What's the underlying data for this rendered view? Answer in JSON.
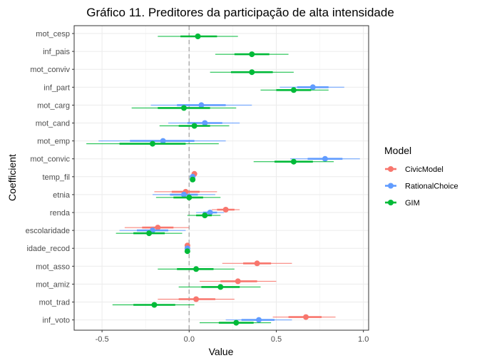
{
  "chart_data": {
    "type": "coefficient-plot",
    "title": "Gráfico 11. Preditores da participação de alta intensidade",
    "xlabel": "Value",
    "ylabel": "Coefficient",
    "xlim": [
      -0.66,
      1.03
    ],
    "xticks": [
      -0.5,
      0.0,
      0.5,
      1.0
    ],
    "xtick_labels": [
      "-0.5",
      "0.0",
      "0.5",
      "1.0"
    ],
    "reference_line": 0,
    "grid": true,
    "legend": {
      "title": "Model",
      "placement": "right"
    },
    "categories": [
      "mot_cesp",
      "inf_pais",
      "mot_conviv",
      "inf_part",
      "mot_carg",
      "mot_cand",
      "mot_emp",
      "mot_convic",
      "temp_fil",
      "etnia",
      "renda",
      "escolaridade",
      "idade_recod",
      "mot_asso",
      "mot_amiz",
      "mot_trad",
      "inf_voto"
    ],
    "series": [
      {
        "name": "CivicModel",
        "color": "#F8766D",
        "offset": -1,
        "points": [
          {
            "category": "temp_fil",
            "estimate": 0.03,
            "inner": [
              0.02,
              0.04
            ],
            "outer": [
              0.015,
              0.045
            ]
          },
          {
            "category": "etnia",
            "estimate": -0.02,
            "inner": [
              -0.1,
              0.06
            ],
            "outer": [
              -0.2,
              0.16
            ]
          },
          {
            "category": "renda",
            "estimate": 0.21,
            "inner": [
              0.16,
              0.26
            ],
            "outer": [
              0.13,
              0.29
            ]
          },
          {
            "category": "escolaridade",
            "estimate": -0.18,
            "inner": [
              -0.27,
              -0.09
            ],
            "outer": [
              -0.37,
              0.0
            ]
          },
          {
            "category": "idade_recod",
            "estimate": -0.01,
            "inner": [
              -0.015,
              -0.005
            ],
            "outer": [
              -0.02,
              0.0
            ]
          },
          {
            "category": "mot_asso",
            "estimate": 0.39,
            "inner": [
              0.31,
              0.47
            ],
            "outer": [
              0.19,
              0.59
            ]
          },
          {
            "category": "mot_amiz",
            "estimate": 0.28,
            "inner": [
              0.18,
              0.39
            ],
            "outer": [
              0.06,
              0.5
            ]
          },
          {
            "category": "mot_trad",
            "estimate": 0.04,
            "inner": [
              -0.06,
              0.15
            ],
            "outer": [
              -0.18,
              0.26
            ]
          },
          {
            "category": "inf_voto",
            "estimate": 0.67,
            "inner": [
              0.57,
              0.76
            ],
            "outer": [
              0.48,
              0.84
            ]
          }
        ]
      },
      {
        "name": "RationalChoice",
        "color": "#619CFF",
        "offset": 0,
        "points": [
          {
            "category": "inf_part",
            "estimate": 0.71,
            "inner": [
              0.62,
              0.8
            ],
            "outer": [
              0.52,
              0.89
            ]
          },
          {
            "category": "mot_carg",
            "estimate": 0.07,
            "inner": [
              -0.07,
              0.21
            ],
            "outer": [
              -0.22,
              0.36
            ]
          },
          {
            "category": "mot_cand",
            "estimate": 0.09,
            "inner": [
              -0.01,
              0.19
            ],
            "outer": [
              -0.12,
              0.29
            ]
          },
          {
            "category": "mot_emp",
            "estimate": -0.15,
            "inner": [
              -0.34,
              0.03
            ],
            "outer": [
              -0.52,
              0.21
            ]
          },
          {
            "category": "mot_convic",
            "estimate": 0.78,
            "inner": [
              0.68,
              0.88
            ],
            "outer": [
              0.58,
              0.98
            ]
          },
          {
            "category": "temp_fil",
            "estimate": 0.02,
            "inner": [
              0.01,
              0.03
            ],
            "outer": [
              0.005,
              0.035
            ]
          },
          {
            "category": "etnia",
            "estimate": -0.03,
            "inner": [
              -0.11,
              0.05
            ],
            "outer": [
              -0.21,
              0.15
            ]
          },
          {
            "category": "renda",
            "estimate": 0.12,
            "inner": [
              0.08,
              0.16
            ],
            "outer": [
              0.04,
              0.2
            ]
          },
          {
            "category": "escolaridade",
            "estimate": -0.21,
            "inner": [
              -0.3,
              -0.12
            ],
            "outer": [
              -0.4,
              -0.02
            ]
          },
          {
            "category": "idade_recod",
            "estimate": -0.01,
            "inner": [
              -0.015,
              -0.005
            ],
            "outer": [
              -0.02,
              0.0
            ]
          },
          {
            "category": "inf_voto",
            "estimate": 0.4,
            "inner": [
              0.3,
              0.49
            ],
            "outer": [
              0.21,
              0.59
            ]
          }
        ]
      },
      {
        "name": "GIM",
        "color": "#00BA38",
        "offset": 1,
        "points": [
          {
            "category": "mot_cesp",
            "estimate": 0.05,
            "inner": [
              -0.05,
              0.16
            ],
            "outer": [
              -0.18,
              0.28
            ]
          },
          {
            "category": "inf_pais",
            "estimate": 0.36,
            "inner": [
              0.26,
              0.46
            ],
            "outer": [
              0.15,
              0.57
            ]
          },
          {
            "category": "mot_conviv",
            "estimate": 0.36,
            "inner": [
              0.24,
              0.48
            ],
            "outer": [
              0.12,
              0.6
            ]
          },
          {
            "category": "inf_part",
            "estimate": 0.6,
            "inner": [
              0.5,
              0.7
            ],
            "outer": [
              0.41,
              0.8
            ]
          },
          {
            "category": "mot_carg",
            "estimate": -0.03,
            "inner": [
              -0.18,
              0.12
            ],
            "outer": [
              -0.33,
              0.27
            ]
          },
          {
            "category": "mot_cand",
            "estimate": 0.03,
            "inner": [
              -0.06,
              0.12
            ],
            "outer": [
              -0.17,
              0.23
            ]
          },
          {
            "category": "mot_emp",
            "estimate": -0.21,
            "inner": [
              -0.4,
              -0.02
            ],
            "outer": [
              -0.59,
              0.17
            ]
          },
          {
            "category": "mot_convic",
            "estimate": 0.6,
            "inner": [
              0.49,
              0.71
            ],
            "outer": [
              0.37,
              0.83
            ]
          },
          {
            "category": "temp_fil",
            "estimate": 0.02,
            "inner": [
              0.01,
              0.03
            ],
            "outer": [
              0.005,
              0.035
            ]
          },
          {
            "category": "etnia",
            "estimate": 0.0,
            "inner": [
              -0.09,
              0.08
            ],
            "outer": [
              -0.19,
              0.18
            ]
          },
          {
            "category": "renda",
            "estimate": 0.09,
            "inner": [
              0.04,
              0.13
            ],
            "outer": [
              -0.01,
              0.18
            ]
          },
          {
            "category": "escolaridade",
            "estimate": -0.23,
            "inner": [
              -0.32,
              -0.14
            ],
            "outer": [
              -0.42,
              -0.04
            ]
          },
          {
            "category": "idade_recod",
            "estimate": -0.01,
            "inner": [
              -0.015,
              -0.005
            ],
            "outer": [
              -0.02,
              0.0
            ]
          },
          {
            "category": "mot_asso",
            "estimate": 0.04,
            "inner": [
              -0.07,
              0.14
            ],
            "outer": [
              -0.18,
              0.26
            ]
          },
          {
            "category": "mot_amiz",
            "estimate": 0.18,
            "inner": [
              0.07,
              0.29
            ],
            "outer": [
              -0.06,
              0.41
            ]
          },
          {
            "category": "mot_trad",
            "estimate": -0.2,
            "inner": [
              -0.32,
              -0.08
            ],
            "outer": [
              -0.44,
              0.03
            ]
          },
          {
            "category": "inf_voto",
            "estimate": 0.27,
            "inner": [
              0.17,
              0.37
            ],
            "outer": [
              0.06,
              0.47
            ]
          }
        ]
      }
    ]
  }
}
